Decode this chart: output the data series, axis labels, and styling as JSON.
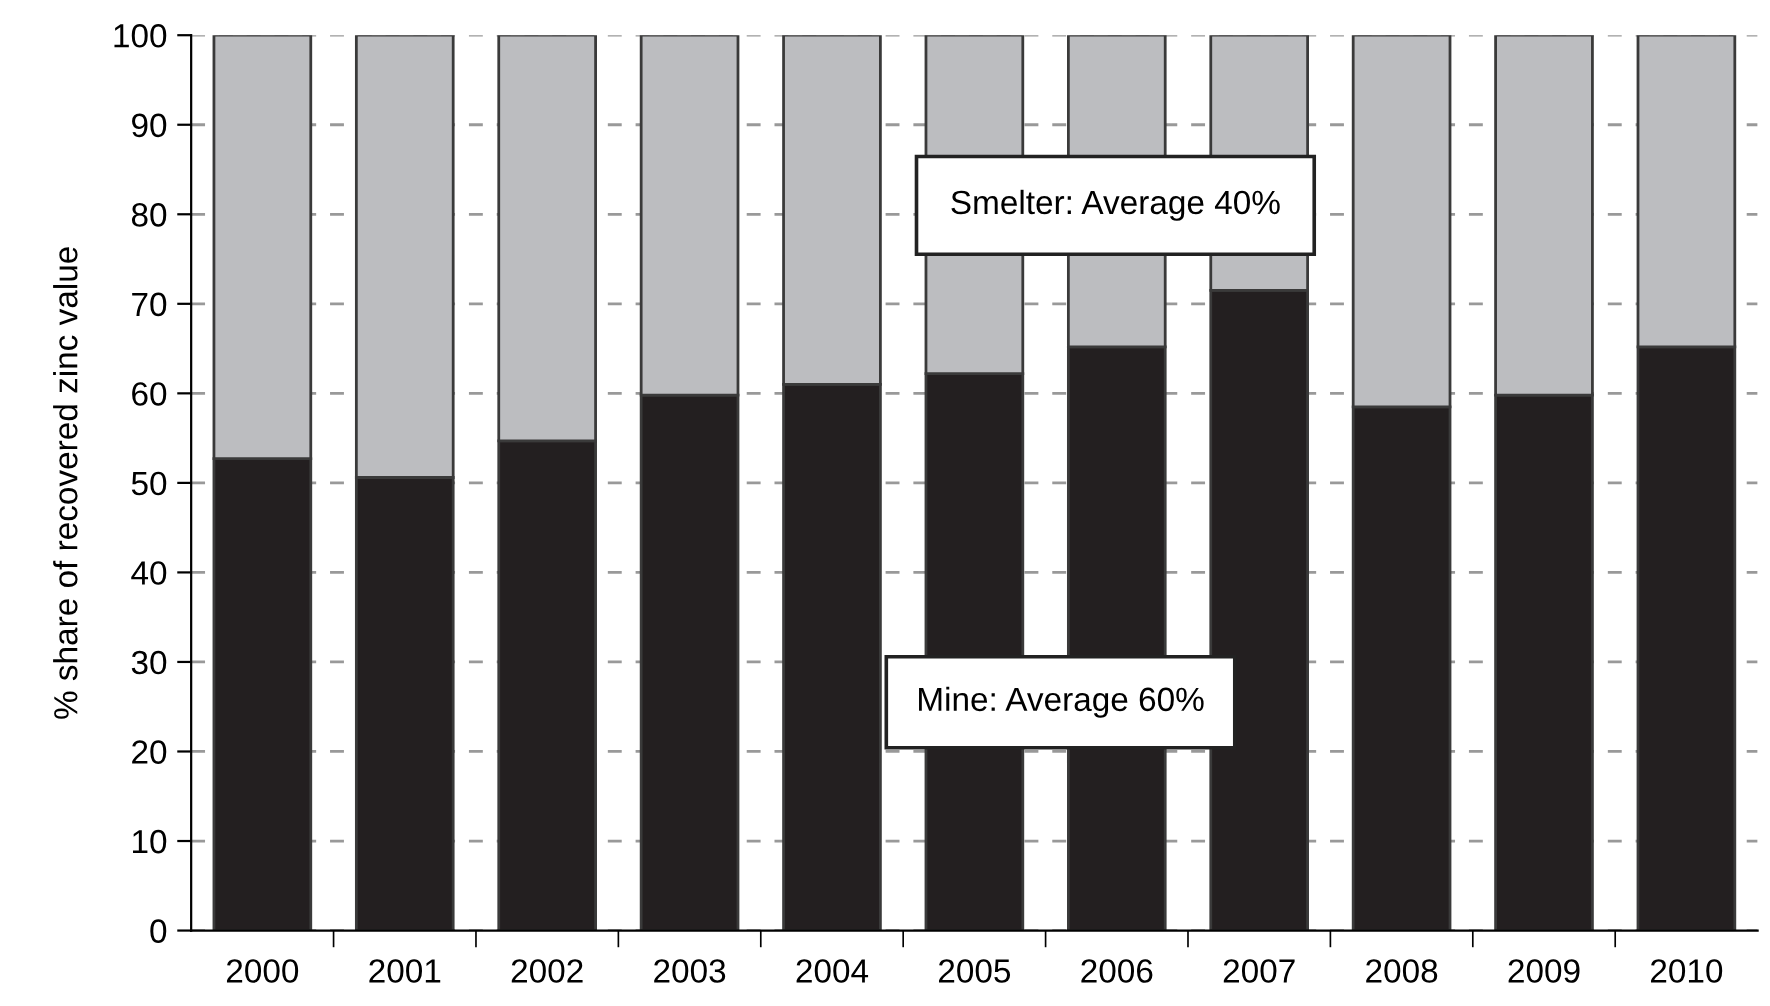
{
  "chart_data": {
    "type": "bar",
    "stacked": true,
    "ylabel": "% share of recovered zinc value",
    "categories": [
      "2000",
      "2001",
      "2002",
      "2003",
      "2004",
      "2005",
      "2006",
      "2007",
      "2008",
      "2009",
      "2010"
    ],
    "series": [
      {
        "color": "#231f20",
        "values": [
          52.7,
          50.6,
          54.7,
          59.8,
          61,
          62.2,
          65.2,
          71.5,
          58.5,
          59.8,
          65.2
        ]
      },
      {
        "color": "#bcbdc0",
        "values": [
          47.3,
          49.4,
          45.3,
          40.2,
          39,
          37.8,
          34.8,
          28.5,
          41.5,
          40.2,
          34.8
        ]
      }
    ],
    "ylim": [
      0,
      100
    ],
    "yticks": [
      0,
      10,
      20,
      30,
      40,
      50,
      60,
      70,
      80,
      90,
      100
    ],
    "grid": "y",
    "legend": false,
    "annotations": [
      "Smelter: Average 40%",
      "Mine: Average 60%"
    ]
  }
}
